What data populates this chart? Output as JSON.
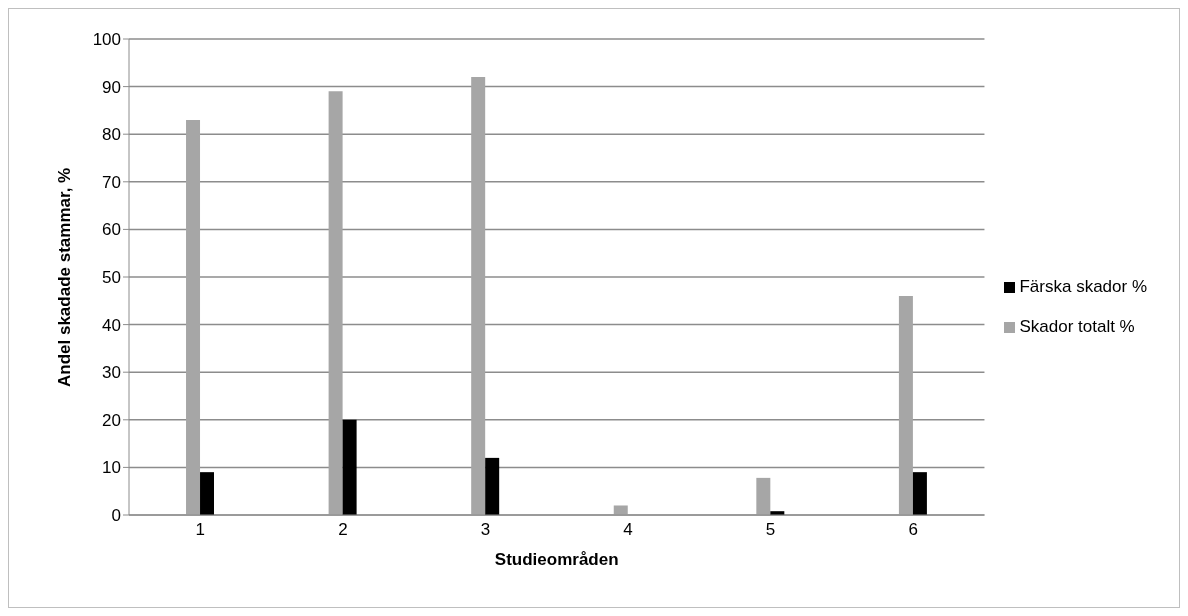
{
  "chart_data": {
    "type": "bar",
    "xlabel": "Studieområden",
    "ylabel": "Andel skadade stammar, %",
    "categories": [
      "1",
      "2",
      "3",
      "4",
      "5",
      "6"
    ],
    "series": [
      {
        "name": "Skador totalt %",
        "color": "#a6a6a6",
        "values": [
          83,
          89,
          92,
          2,
          7.8,
          46
        ]
      },
      {
        "name": "Färska skador %",
        "color": "#000000",
        "values": [
          9,
          20,
          12,
          0,
          0.8,
          9
        ]
      }
    ],
    "ylim": [
      0,
      100
    ],
    "yticks": [
      0,
      10,
      20,
      30,
      40,
      50,
      60,
      70,
      80,
      90,
      100
    ],
    "grid": "y",
    "legend": "right"
  }
}
